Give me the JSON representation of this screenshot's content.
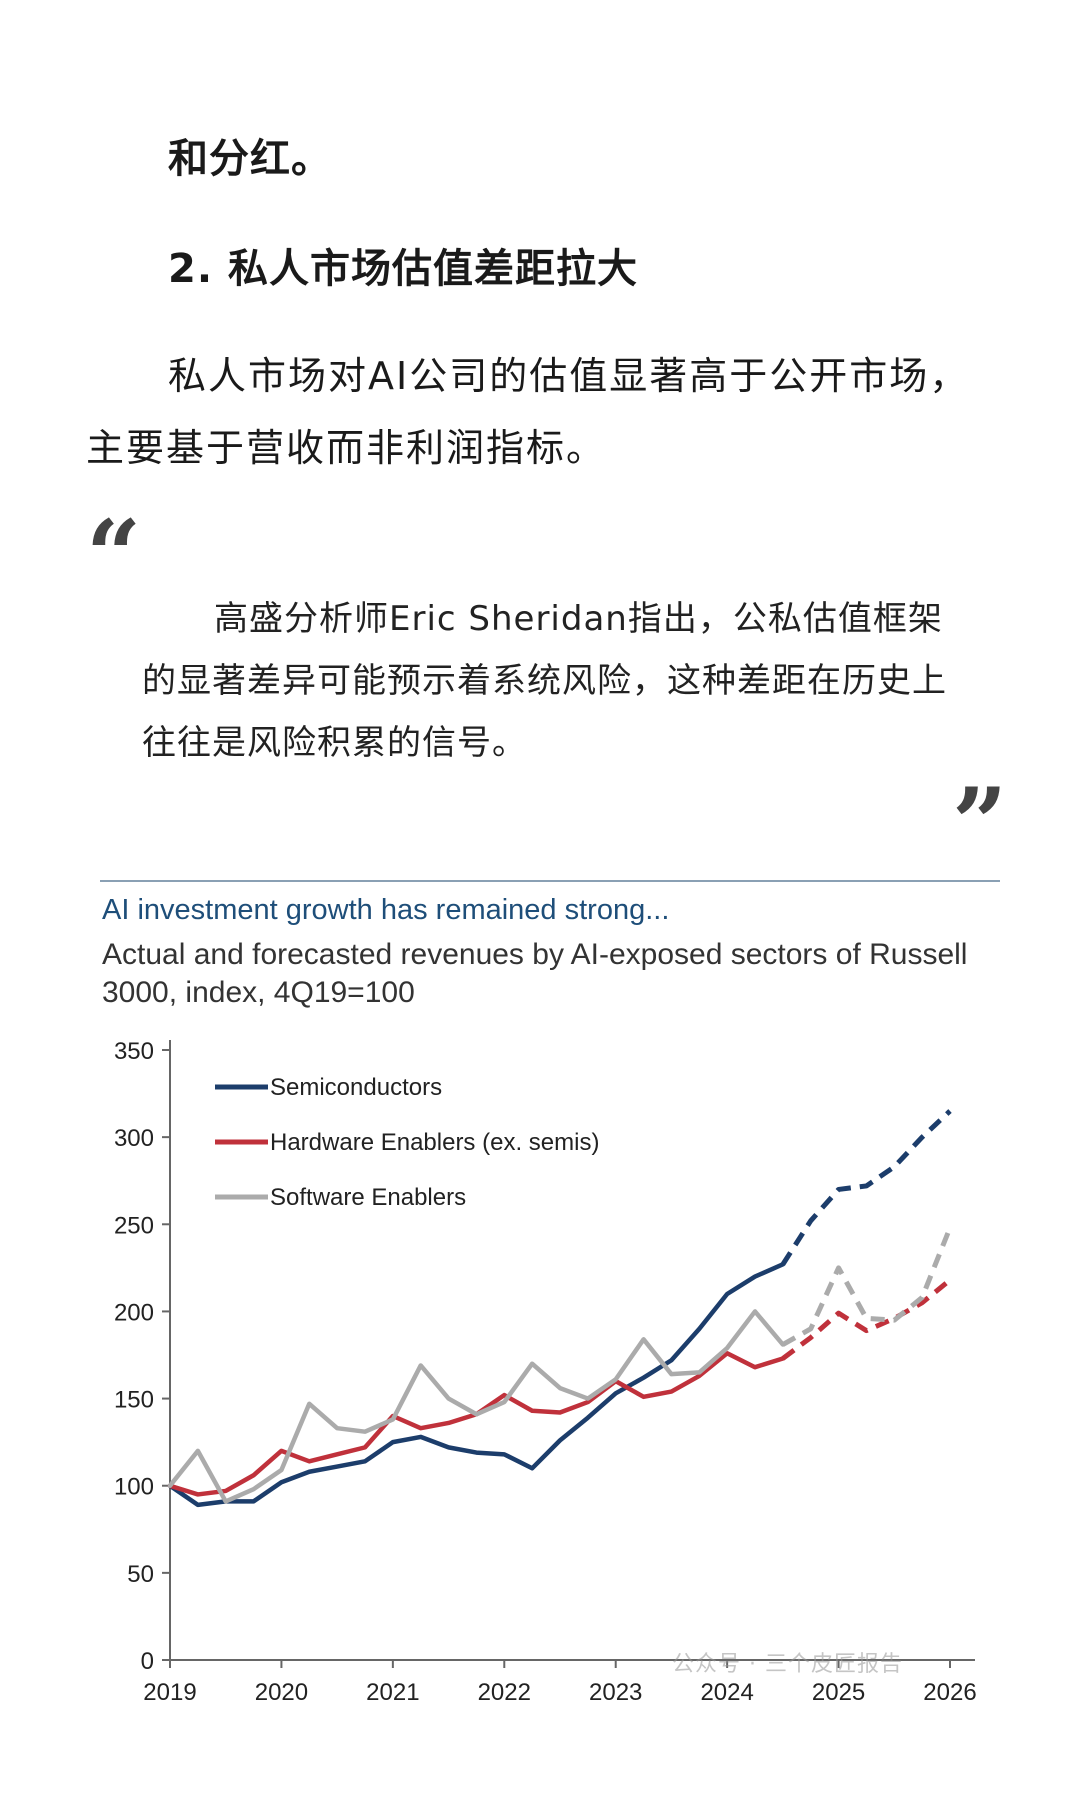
{
  "article": {
    "lead_end": "和分红。",
    "section_heading": "2. 私人市场估值差距拉大",
    "paragraph": "私人市场对AI公司的估值显著高于公开市场，主要基于营收而非利润指标。",
    "quote_open": "“",
    "quote_close": "”",
    "quote_text": "高盛分析师Eric Sheridan指出，公私估值框架的显著差异可能预示着系统风险，这种差距在历史上往往是风险积累的信号。"
  },
  "watermark": "公众号 · 三个皮匠报告",
  "chart_data": {
    "type": "line",
    "title": "AI investment growth has remained strong...",
    "subtitle": "Actual and forecasted revenues by AI-exposed sectors of Russell 3000, index, 4Q19=100",
    "xlabel": "",
    "ylabel": "",
    "x_ticks": [
      "2019",
      "2020",
      "2021",
      "2022",
      "2023",
      "2024",
      "2025",
      "2026"
    ],
    "xlim": [
      2019,
      2026
    ],
    "y_ticks": [
      "0",
      "50",
      "100",
      "150",
      "200",
      "250",
      "300",
      "350"
    ],
    "ylim": [
      0,
      350
    ],
    "legend_position": "top-left",
    "grid": false,
    "forecast_from_x": 2024.5,
    "series": [
      {
        "name": "Semiconductors",
        "color": "#1c3d6b",
        "x": [
          2019,
          2019.25,
          2019.5,
          2019.75,
          2020,
          2020.25,
          2020.5,
          2020.75,
          2021,
          2021.25,
          2021.5,
          2021.75,
          2022,
          2022.25,
          2022.5,
          2022.75,
          2023,
          2023.25,
          2023.5,
          2023.75,
          2024,
          2024.25,
          2024.5,
          2024.75,
          2025,
          2025.25,
          2025.5,
          2025.75,
          2026
        ],
        "values": [
          100,
          89,
          91,
          91,
          102,
          108,
          111,
          114,
          125,
          128,
          122,
          119,
          118,
          110,
          126,
          139,
          153,
          162,
          172,
          190,
          210,
          220,
          227,
          252,
          270,
          272,
          283,
          300,
          315
        ]
      },
      {
        "name": "Hardware Enablers (ex. semis)",
        "color": "#c0313b",
        "x": [
          2019,
          2019.25,
          2019.5,
          2019.75,
          2020,
          2020.25,
          2020.5,
          2020.75,
          2021,
          2021.25,
          2021.5,
          2021.75,
          2022,
          2022.25,
          2022.5,
          2022.75,
          2023,
          2023.25,
          2023.5,
          2023.75,
          2024,
          2024.25,
          2024.5,
          2024.75,
          2025,
          2025.25,
          2025.5,
          2025.75,
          2026
        ],
        "values": [
          100,
          95,
          97,
          106,
          120,
          114,
          118,
          122,
          140,
          133,
          136,
          141,
          152,
          143,
          142,
          148,
          160,
          151,
          154,
          163,
          176,
          168,
          173,
          185,
          199,
          189,
          196,
          205,
          218
        ]
      },
      {
        "name": "Software Enablers",
        "color": "#ababab",
        "x": [
          2019,
          2019.25,
          2019.5,
          2019.75,
          2020,
          2020.25,
          2020.5,
          2020.75,
          2021,
          2021.25,
          2021.5,
          2021.75,
          2022,
          2022.25,
          2022.5,
          2022.75,
          2023,
          2023.25,
          2023.5,
          2023.75,
          2024,
          2024.25,
          2024.5,
          2024.75,
          2025,
          2025.25,
          2025.5,
          2025.75,
          2026
        ],
        "values": [
          100,
          120,
          91,
          98,
          109,
          147,
          133,
          131,
          138,
          169,
          150,
          141,
          148,
          170,
          156,
          150,
          161,
          184,
          164,
          165,
          179,
          200,
          181,
          190,
          225,
          196,
          195,
          208,
          248
        ]
      }
    ]
  }
}
